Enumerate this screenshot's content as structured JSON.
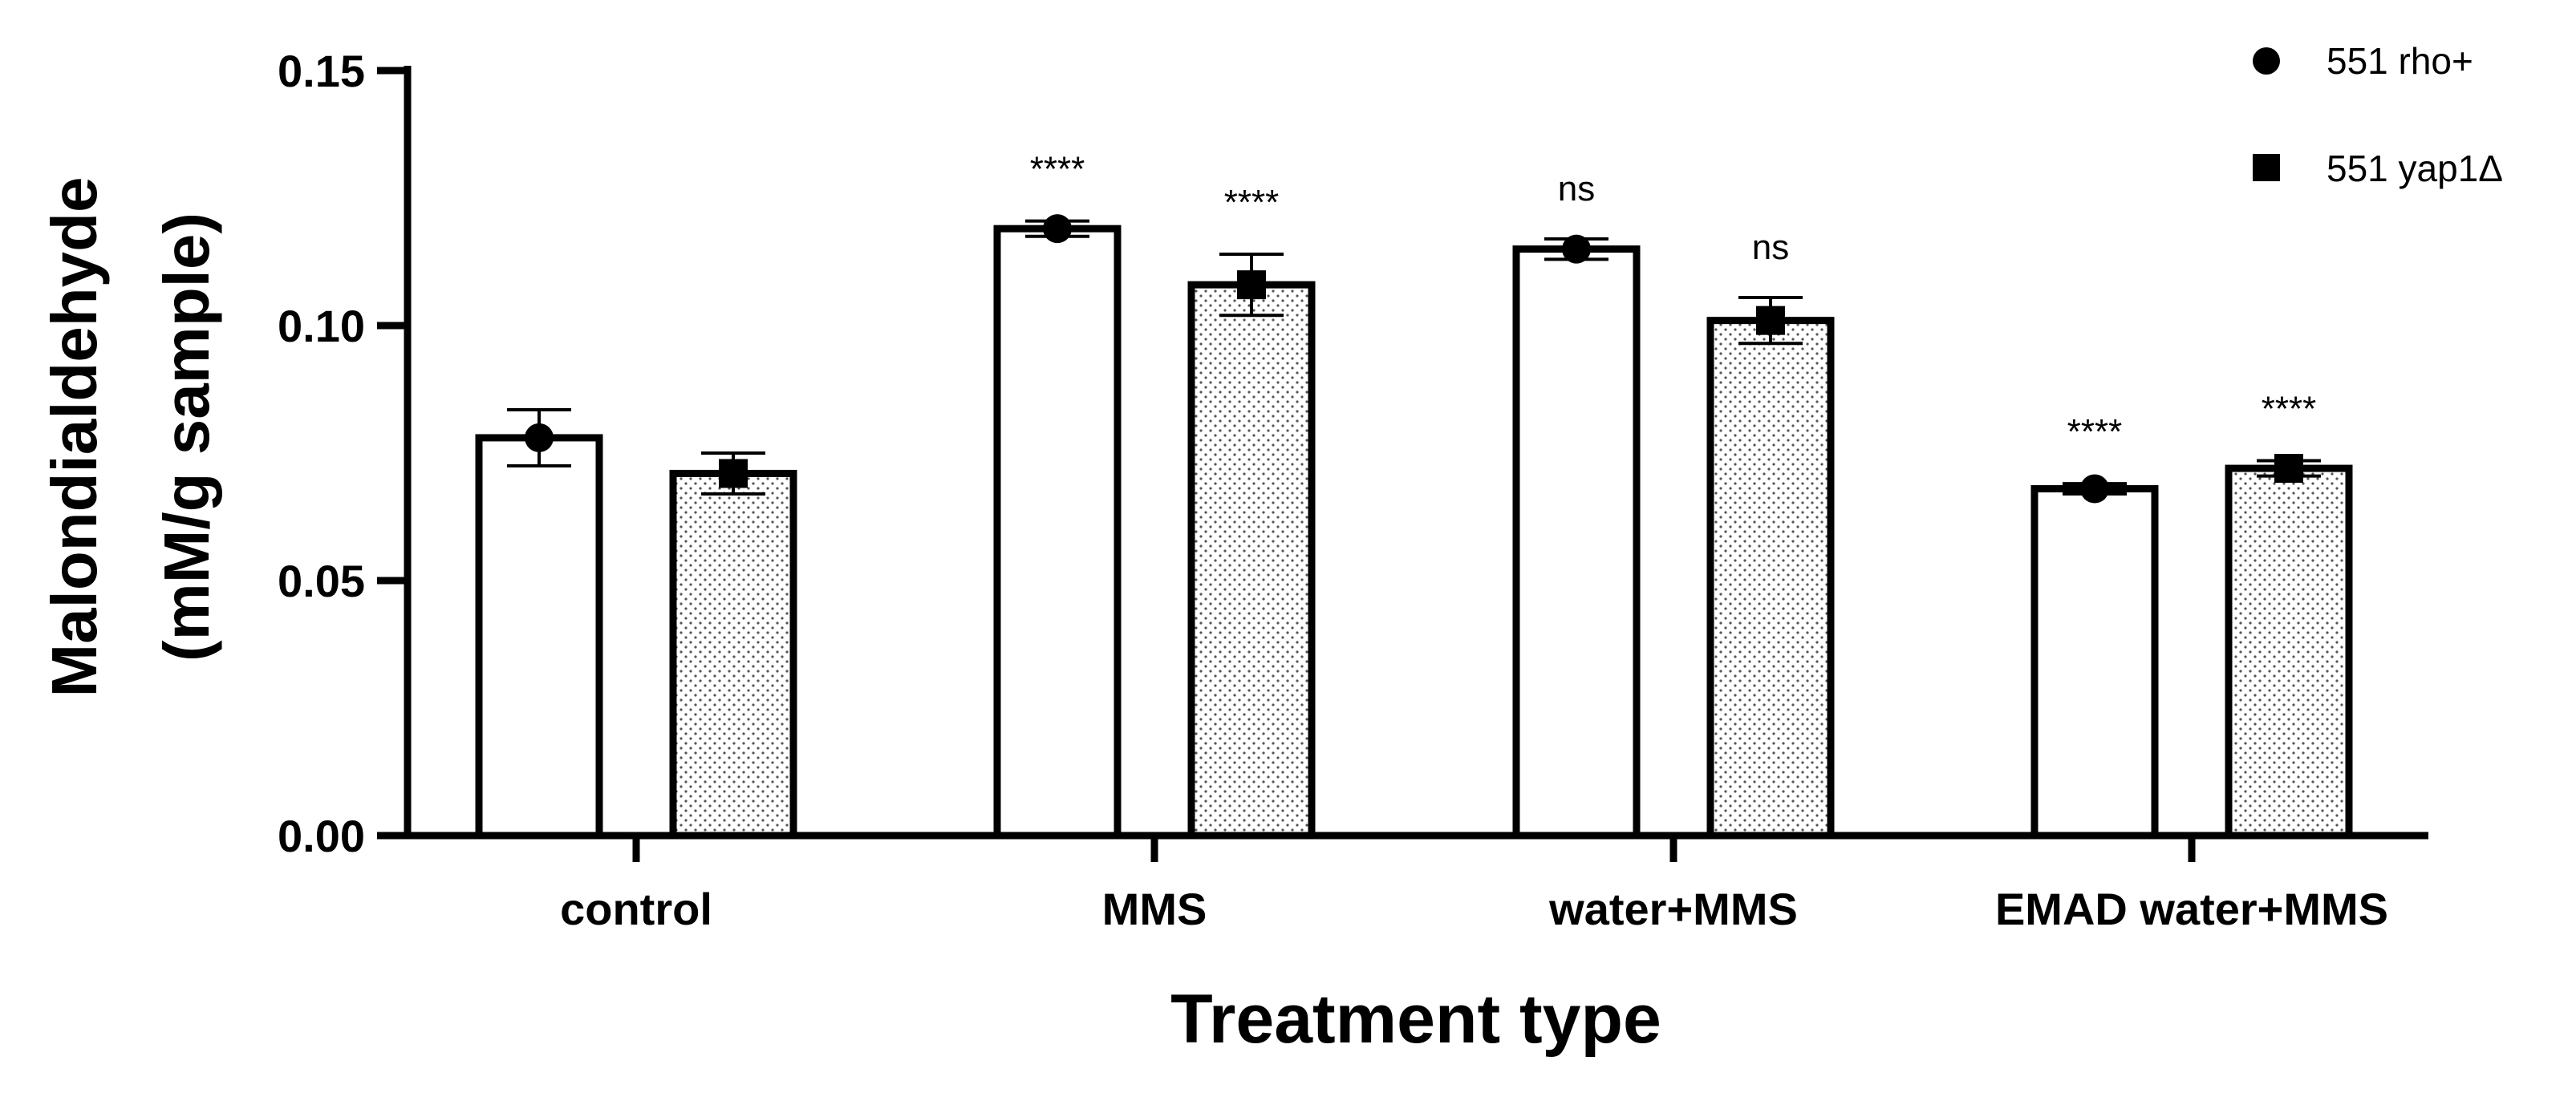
{
  "chart_data": {
    "type": "bar",
    "title": "",
    "xlabel": "Treatment type",
    "ylabel_line1": "Malondialdehyde",
    "ylabel_line2": "(mM/g sample)",
    "ylim": [
      0,
      0.15
    ],
    "yticks": [
      "0.00",
      "0.05",
      "0.10",
      "0.15"
    ],
    "ytick_values": [
      0,
      0.05,
      0.1,
      0.15
    ],
    "categories": [
      "control",
      "MMS",
      "water+MMS",
      "EMAD water+MMS"
    ],
    "series": [
      {
        "name": "551 rho+",
        "marker": "circle",
        "fill": "white",
        "values": [
          0.078,
          0.119,
          0.115,
          0.068
        ],
        "errors": [
          0.0055,
          0.0015,
          0.002,
          0.001
        ],
        "significance": [
          "",
          "****",
          "ns",
          "****"
        ]
      },
      {
        "name": "551 yap1Δ",
        "marker": "square",
        "fill": "dotted",
        "values": [
          0.071,
          0.108,
          0.101,
          0.072
        ],
        "errors": [
          0.004,
          0.006,
          0.0045,
          0.0015
        ],
        "significance": [
          "",
          "****",
          "ns",
          "****"
        ]
      }
    ],
    "legend_position": "top-right",
    "grid": false,
    "colors": {
      "stroke": "#000000",
      "background": "#ffffff",
      "dots": "#555555"
    }
  }
}
